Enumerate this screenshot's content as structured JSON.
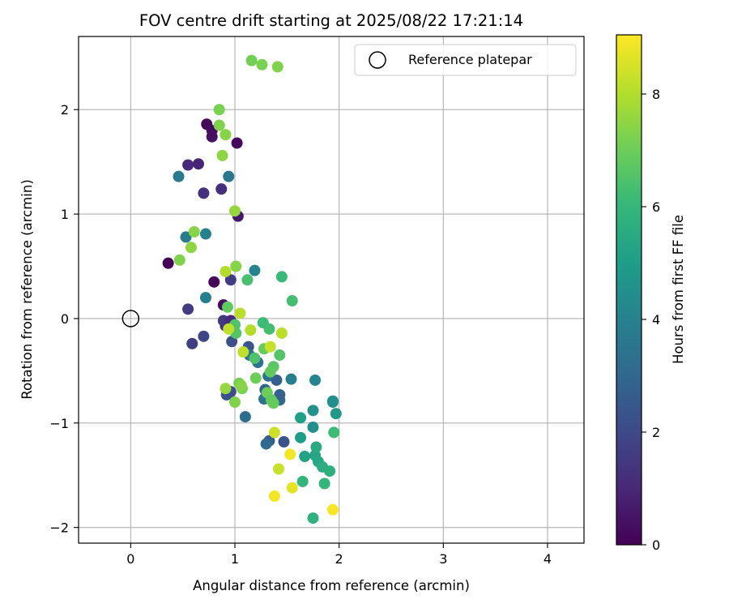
{
  "chart_data": {
    "type": "scatter",
    "title": "FOV centre drift starting at 2025/08/22 17:21:14",
    "xlabel": "Angular distance from reference (arcmin)",
    "ylabel": "Rotation from reference (arcmin)",
    "xlim": [
      -0.5,
      4.35
    ],
    "ylim": [
      -2.15,
      2.7
    ],
    "xticks": [
      0,
      1,
      2,
      3,
      4
    ],
    "yticks": [
      -2,
      -1,
      0,
      1,
      2
    ],
    "grid": true,
    "legend": {
      "placement": "top-right",
      "entries": [
        "Reference platepar"
      ]
    },
    "reference_point": {
      "label": "Reference platepar",
      "x": 0,
      "y": 0
    },
    "colorbar": {
      "label": "Hours from first FF file",
      "min": 0,
      "max": 9.05,
      "ticks": [
        0,
        2,
        4,
        6,
        8
      ],
      "colormap": "viridis"
    },
    "points": [
      {
        "x": 0.73,
        "y": 1.86,
        "hours": 0.1
      },
      {
        "x": 0.78,
        "y": 1.8,
        "hours": 0.3
      },
      {
        "x": 0.78,
        "y": 1.74,
        "hours": 0.4
      },
      {
        "x": 1.02,
        "y": 1.68,
        "hours": 0.2
      },
      {
        "x": 0.36,
        "y": 0.53,
        "hours": 0.05
      },
      {
        "x": 0.8,
        "y": 0.35,
        "hours": 0.15
      },
      {
        "x": 0.89,
        "y": 0.13,
        "hours": 0.3
      },
      {
        "x": 1.03,
        "y": 0.98,
        "hours": 0.6
      },
      {
        "x": 0.55,
        "y": 1.47,
        "hours": 1.0
      },
      {
        "x": 0.65,
        "y": 1.48,
        "hours": 0.9
      },
      {
        "x": 0.7,
        "y": 1.2,
        "hours": 1.3
      },
      {
        "x": 0.87,
        "y": 1.24,
        "hours": 1.2
      },
      {
        "x": 0.55,
        "y": 0.09,
        "hours": 1.6
      },
      {
        "x": 0.59,
        "y": -0.24,
        "hours": 1.7
      },
      {
        "x": 0.7,
        "y": -0.17,
        "hours": 1.9
      },
      {
        "x": 0.89,
        "y": -0.02,
        "hours": 1.5
      },
      {
        "x": 0.91,
        "y": -0.07,
        "hours": 1.4
      },
      {
        "x": 0.96,
        "y": 0.37,
        "hours": 1.6
      },
      {
        "x": 0.96,
        "y": -0.02,
        "hours": 1.1
      },
      {
        "x": 0.97,
        "y": -0.22,
        "hours": 2.2
      },
      {
        "x": 0.92,
        "y": -0.73,
        "hours": 2.3
      },
      {
        "x": 0.96,
        "y": -0.7,
        "hours": 2.1
      },
      {
        "x": 1.47,
        "y": -1.18,
        "hours": 2.3
      },
      {
        "x": 1.13,
        "y": -0.27,
        "hours": 2.4
      },
      {
        "x": 1.33,
        "y": -1.17,
        "hours": 2.6
      },
      {
        "x": 1.29,
        "y": -0.68,
        "hours": 2.9
      },
      {
        "x": 1.43,
        "y": -0.78,
        "hours": 3.0
      },
      {
        "x": 1.4,
        "y": -0.59,
        "hours": 2.7
      },
      {
        "x": 1.43,
        "y": -0.73,
        "hours": 2.8
      },
      {
        "x": 1.3,
        "y": -1.2,
        "hours": 3.1
      },
      {
        "x": 1.1,
        "y": -0.94,
        "hours": 3.2
      },
      {
        "x": 1.32,
        "y": -0.55,
        "hours": 3.3
      },
      {
        "x": 1.28,
        "y": -0.77,
        "hours": 3.5
      },
      {
        "x": 1.22,
        "y": -0.42,
        "hours": 3.4
      },
      {
        "x": 0.46,
        "y": 1.36,
        "hours": 3.7
      },
      {
        "x": 0.94,
        "y": 1.36,
        "hours": 3.6
      },
      {
        "x": 0.53,
        "y": 0.78,
        "hours": 3.8
      },
      {
        "x": 0.72,
        "y": 0.81,
        "hours": 4.0
      },
      {
        "x": 0.72,
        "y": 0.2,
        "hours": 3.9
      },
      {
        "x": 1.19,
        "y": 0.46,
        "hours": 4.1
      },
      {
        "x": 1.54,
        "y": -0.58,
        "hours": 3.9
      },
      {
        "x": 1.77,
        "y": -0.59,
        "hours": 4.1
      },
      {
        "x": 1.14,
        "y": -0.35,
        "hours": 3.5
      },
      {
        "x": 1.75,
        "y": -1.04,
        "hours": 4.4
      },
      {
        "x": 1.75,
        "y": -0.88,
        "hours": 4.6
      },
      {
        "x": 1.94,
        "y": -0.79,
        "hours": 4.7
      },
      {
        "x": 1.94,
        "y": -0.8,
        "hours": 4.5
      },
      {
        "x": 1.97,
        "y": -0.91,
        "hours": 4.8
      },
      {
        "x": 1.63,
        "y": -0.95,
        "hours": 5.1
      },
      {
        "x": 1.63,
        "y": -1.14,
        "hours": 5.0
      },
      {
        "x": 1.67,
        "y": -1.32,
        "hours": 5.2
      },
      {
        "x": 1.77,
        "y": -1.31,
        "hours": 5.3
      },
      {
        "x": 1.78,
        "y": -1.23,
        "hours": 5.5
      },
      {
        "x": 1.8,
        "y": -1.37,
        "hours": 5.4
      },
      {
        "x": 1.84,
        "y": -1.42,
        "hours": 5.6
      },
      {
        "x": 1.91,
        "y": -1.46,
        "hours": 5.7
      },
      {
        "x": 1.65,
        "y": -1.56,
        "hours": 5.9
      },
      {
        "x": 1.86,
        "y": -1.58,
        "hours": 6.0
      },
      {
        "x": 1.75,
        "y": -1.91,
        "hours": 5.8
      },
      {
        "x": 1.95,
        "y": -1.09,
        "hours": 6.2
      },
      {
        "x": 1.45,
        "y": 0.4,
        "hours": 6.1
      },
      {
        "x": 1.55,
        "y": 0.17,
        "hours": 6.3
      },
      {
        "x": 1.12,
        "y": 0.37,
        "hours": 6.4
      },
      {
        "x": 1.0,
        "y": -0.06,
        "hours": 6.5
      },
      {
        "x": 1.01,
        "y": -0.14,
        "hours": 6.6
      },
      {
        "x": 1.27,
        "y": -0.04,
        "hours": 6.2
      },
      {
        "x": 1.33,
        "y": -0.1,
        "hours": 6.3
      },
      {
        "x": 1.43,
        "y": -0.35,
        "hours": 6.6
      },
      {
        "x": 1.37,
        "y": -0.46,
        "hours": 6.7
      },
      {
        "x": 1.34,
        "y": -0.51,
        "hours": 6.8
      },
      {
        "x": 1.28,
        "y": -0.29,
        "hours": 6.9
      },
      {
        "x": 1.19,
        "y": -0.38,
        "hours": 6.5
      },
      {
        "x": 1.2,
        "y": -0.57,
        "hours": 7.0
      },
      {
        "x": 1.04,
        "y": -0.62,
        "hours": 7.1
      },
      {
        "x": 1.07,
        "y": -0.67,
        "hours": 7.2
      },
      {
        "x": 1.0,
        "y": -0.8,
        "hours": 7.3
      },
      {
        "x": 1.31,
        "y": -0.71,
        "hours": 7.0
      },
      {
        "x": 1.35,
        "y": -0.78,
        "hours": 6.8
      },
      {
        "x": 1.37,
        "y": -0.81,
        "hours": 6.9
      },
      {
        "x": 0.85,
        "y": 2.0,
        "hours": 7.2
      },
      {
        "x": 0.85,
        "y": 1.85,
        "hours": 7.3
      },
      {
        "x": 0.91,
        "y": 1.76,
        "hours": 7.4
      },
      {
        "x": 0.88,
        "y": 1.56,
        "hours": 7.5
      },
      {
        "x": 1.16,
        "y": 2.47,
        "hours": 7.1
      },
      {
        "x": 1.26,
        "y": 2.43,
        "hours": 7.2
      },
      {
        "x": 1.41,
        "y": 2.41,
        "hours": 7.3
      },
      {
        "x": 1.0,
        "y": 1.03,
        "hours": 7.6
      },
      {
        "x": 0.61,
        "y": 0.83,
        "hours": 7.4
      },
      {
        "x": 0.58,
        "y": 0.68,
        "hours": 7.5
      },
      {
        "x": 0.47,
        "y": 0.56,
        "hours": 7.3
      },
      {
        "x": 1.01,
        "y": 0.5,
        "hours": 7.4
      },
      {
        "x": 0.93,
        "y": 0.11,
        "hours": 6.8
      },
      {
        "x": 0.91,
        "y": -0.67,
        "hours": 7.6
      },
      {
        "x": 1.06,
        "y": -0.64,
        "hours": 7.4
      },
      {
        "x": 0.91,
        "y": 0.45,
        "hours": 8.0
      },
      {
        "x": 1.05,
        "y": 0.05,
        "hours": 8.1
      },
      {
        "x": 0.94,
        "y": -0.1,
        "hours": 8.2
      },
      {
        "x": 1.15,
        "y": -0.11,
        "hours": 8.0
      },
      {
        "x": 1.08,
        "y": -0.32,
        "hours": 8.2
      },
      {
        "x": 1.34,
        "y": -0.27,
        "hours": 8.3
      },
      {
        "x": 1.45,
        "y": -0.14,
        "hours": 8.1
      },
      {
        "x": 1.38,
        "y": -1.09,
        "hours": 8.4
      },
      {
        "x": 1.42,
        "y": -1.44,
        "hours": 8.3
      },
      {
        "x": 1.53,
        "y": -1.3,
        "hours": 8.9
      },
      {
        "x": 1.55,
        "y": -1.62,
        "hours": 8.7
      },
      {
        "x": 1.38,
        "y": -1.7,
        "hours": 8.9
      },
      {
        "x": 1.94,
        "y": -1.83,
        "hours": 8.95
      }
    ]
  }
}
